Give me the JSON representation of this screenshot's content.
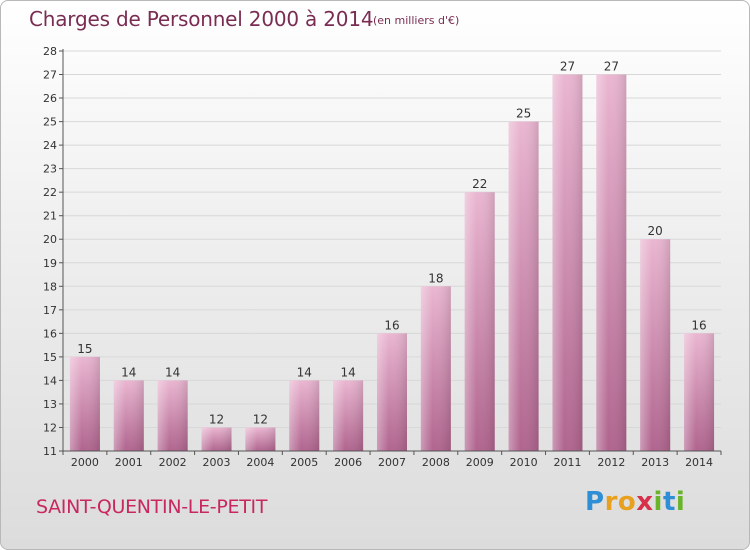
{
  "header": {
    "title": "Charges de Personnel 2000 à 2014",
    "unit": "(en milliers d'€)"
  },
  "commune": "SAINT-QUENTIN-LE-PETIT",
  "logo": {
    "text": "Proxiti",
    "letters": [
      {
        "ch": "P",
        "color": "#2f8fd6"
      },
      {
        "ch": "r",
        "color": "#e8a020"
      },
      {
        "ch": "o",
        "color": "#e8a020"
      },
      {
        "ch": "x",
        "color": "#d8304a"
      },
      {
        "ch": "i",
        "color": "#6ab42a"
      },
      {
        "ch": "t",
        "color": "#2f8fd6"
      },
      {
        "ch": "i",
        "color": "#6ab42a"
      }
    ]
  },
  "colors": {
    "bar": "#d98fb6",
    "bar_light": "#eab6d1",
    "bar_dark": "#b0648e",
    "text_dark": "#333333",
    "axis": "#555555",
    "grid": "#d8d8d8"
  },
  "chart_data": {
    "type": "bar",
    "categories": [
      "2000",
      "2001",
      "2002",
      "2003",
      "2004",
      "2005",
      "2006",
      "2007",
      "2008",
      "2009",
      "2010",
      "2011",
      "2012",
      "2013",
      "2014"
    ],
    "values": [
      15,
      14,
      14,
      12,
      12,
      14,
      14,
      16,
      18,
      22,
      25,
      27,
      27,
      20,
      16
    ],
    "ylim": [
      11,
      28
    ],
    "yticks": [
      11,
      12,
      13,
      14,
      15,
      16,
      17,
      18,
      19,
      20,
      21,
      22,
      23,
      24,
      25,
      26,
      27,
      28
    ],
    "data_labels": true,
    "grid": true
  }
}
